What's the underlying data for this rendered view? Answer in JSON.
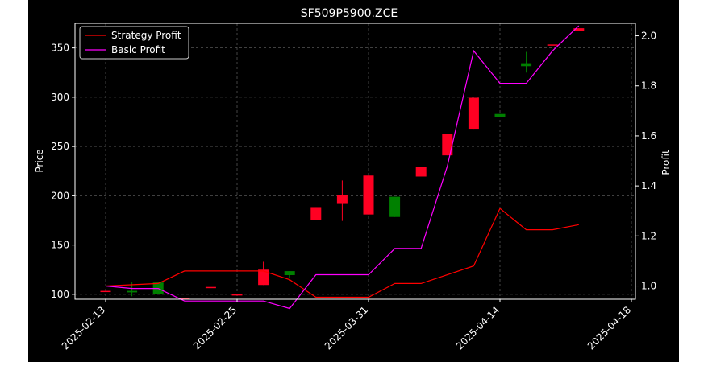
{
  "chart_data": {
    "type": "candlestick+line",
    "title": "SF509P5900.ZCE",
    "ylabel_left": "Price",
    "ylabel_right": "Profit",
    "ylim_left": [
      95,
      375
    ],
    "ylim_right": [
      0.947,
      2.05
    ],
    "y_ticks_left": [
      "100",
      "150",
      "200",
      "250",
      "300",
      "350"
    ],
    "y_ticks_right": [
      "1.0",
      "1.2",
      "1.4",
      "1.6",
      "1.8",
      "2.0"
    ],
    "x_tick_labels": [
      {
        "index": 0,
        "label": "2025-02-13"
      },
      {
        "index": 5,
        "label": "2025-02-25"
      },
      {
        "index": 10,
        "label": "2025-03-31"
      },
      {
        "index": 15,
        "label": "2025-04-14"
      },
      {
        "index": 20,
        "label": "2025-04-18"
      }
    ],
    "legend_position": "top-left",
    "grid": true,
    "candles": [
      {
        "i": 0,
        "open": 103.5,
        "close": 103.5,
        "high": 103.5,
        "low": 103.5
      },
      {
        "i": 1,
        "open": 103.5,
        "close": 102.0,
        "high": 112.0,
        "low": 98.0
      },
      {
        "i": 2,
        "open": 112.0,
        "close": 100.0,
        "high": 112.0,
        "low": 100.0
      },
      {
        "i": 3,
        "open": 96.0,
        "close": 96.0,
        "high": 96.0,
        "low": 96.0
      },
      {
        "i": 4,
        "open": 107.5,
        "close": 107.5,
        "high": 107.5,
        "low": 107.5
      },
      {
        "i": 5,
        "open": 100.0,
        "close": 100.0,
        "high": 100.0,
        "low": 100.0
      },
      {
        "i": 6,
        "open": 109.5,
        "close": 125.0,
        "high": 133.0,
        "low": 109.5
      },
      {
        "i": 7,
        "open": 123.5,
        "close": 119.5,
        "high": 123.5,
        "low": 116.0
      },
      {
        "i": 8,
        "open": 175.0,
        "close": 188.5,
        "high": 188.5,
        "low": 175.0
      },
      {
        "i": 9,
        "open": 192.5,
        "close": 201.0,
        "high": 215.5,
        "low": 174.5
      },
      {
        "i": 10,
        "open": 181.0,
        "close": 220.5,
        "high": 220.5,
        "low": 181.0
      },
      {
        "i": 11,
        "open": 199.0,
        "close": 178.5,
        "high": 199.0,
        "low": 178.5
      },
      {
        "i": 12,
        "open": 219.5,
        "close": 229.5,
        "high": 229.5,
        "low": 219.5
      },
      {
        "i": 13,
        "open": 241.0,
        "close": 263.0,
        "high": 263.0,
        "low": 241.0
      },
      {
        "i": 14,
        "open": 268.0,
        "close": 299.5,
        "high": 299.5,
        "low": 268.0
      },
      {
        "i": 15,
        "open": 283.0,
        "close": 279.5,
        "high": 283.0,
        "low": 279.5
      },
      {
        "i": 16,
        "open": 334.5,
        "close": 331.5,
        "high": 346.0,
        "low": 325.0
      },
      {
        "i": 17,
        "open": 353.5,
        "close": 353.5,
        "high": 353.5,
        "low": 353.5
      },
      {
        "i": 18,
        "open": 367.0,
        "close": 370.0,
        "high": 370.0,
        "low": 367.0
      }
    ],
    "series": [
      {
        "name": "Strategy Profit",
        "color": "#ff0000",
        "x": [
          0,
          2,
          3,
          6,
          7,
          8,
          10,
          11,
          12,
          14,
          15,
          16,
          17,
          18
        ],
        "y": [
          1.0,
          1.01,
          1.06,
          1.06,
          1.025,
          0.955,
          0.955,
          1.01,
          1.01,
          1.08,
          1.31,
          1.225,
          1.225,
          1.245
        ]
      },
      {
        "name": "Basic Profit",
        "color": "#ff00ff",
        "x": [
          0,
          1,
          2,
          3,
          5,
          6,
          7,
          8,
          9,
          10,
          11,
          12,
          13,
          14,
          15,
          16,
          17,
          18
        ],
        "y": [
          1.0,
          0.99,
          0.99,
          0.94,
          0.94,
          0.94,
          0.91,
          1.045,
          1.045,
          1.045,
          1.15,
          1.15,
          1.48,
          1.94,
          1.81,
          1.81,
          1.94,
          2.04
        ]
      }
    ],
    "colors": {
      "background": "#000000",
      "up_candle": "#ff0022",
      "down_candle": "#008000",
      "text": "#ffffff",
      "grid": "#555555"
    }
  }
}
